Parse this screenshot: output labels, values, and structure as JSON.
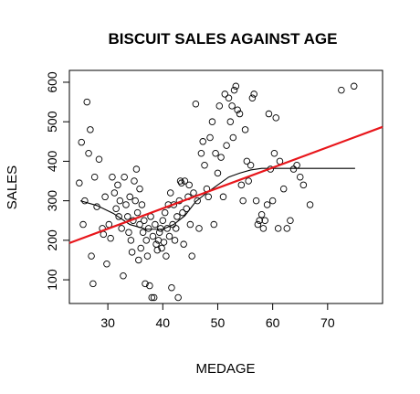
{
  "chart_data": {
    "type": "scatter",
    "title": "BISCUIT SALES AGAINST AGE",
    "xlabel": "MEDAGE",
    "ylabel": "SALES",
    "xlim": [
      23,
      80
    ],
    "ylim": [
      40,
      630
    ],
    "xticks": [
      30,
      40,
      50,
      60,
      70
    ],
    "yticks": [
      100,
      200,
      300,
      400,
      500,
      600
    ],
    "grid": false,
    "points": [
      [
        24.8,
        345
      ],
      [
        25.2,
        448
      ],
      [
        25.5,
        240
      ],
      [
        25.8,
        300
      ],
      [
        26.2,
        550
      ],
      [
        26.5,
        420
      ],
      [
        26.8,
        480
      ],
      [
        27.0,
        160
      ],
      [
        27.3,
        90
      ],
      [
        27.6,
        360
      ],
      [
        28.0,
        285
      ],
      [
        28.4,
        405
      ],
      [
        29.0,
        230
      ],
      [
        29.2,
        215
      ],
      [
        29.5,
        310
      ],
      [
        29.8,
        140
      ],
      [
        30.2,
        240
      ],
      [
        30.5,
        205
      ],
      [
        30.8,
        360
      ],
      [
        31.2,
        320
      ],
      [
        31.5,
        280
      ],
      [
        31.8,
        340
      ],
      [
        32.0,
        260
      ],
      [
        32.2,
        300
      ],
      [
        32.5,
        230
      ],
      [
        32.8,
        110
      ],
      [
        33.0,
        360
      ],
      [
        33.3,
        290
      ],
      [
        33.6,
        260
      ],
      [
        33.8,
        220
      ],
      [
        34.0,
        310
      ],
      [
        34.2,
        200
      ],
      [
        34.4,
        170
      ],
      [
        34.6,
        250
      ],
      [
        34.8,
        350
      ],
      [
        35.0,
        300
      ],
      [
        35.2,
        380
      ],
      [
        35.4,
        270
      ],
      [
        35.6,
        150
      ],
      [
        35.8,
        240
      ],
      [
        36.0,
        180
      ],
      [
        36.2,
        290
      ],
      [
        36.4,
        220
      ],
      [
        36.6,
        250
      ],
      [
        36.8,
        90
      ],
      [
        37.0,
        200
      ],
      [
        37.2,
        160
      ],
      [
        37.4,
        230
      ],
      [
        37.6,
        85
      ],
      [
        37.8,
        260
      ],
      [
        38.0,
        55
      ],
      [
        38.2,
        210
      ],
      [
        38.4,
        55
      ],
      [
        38.6,
        240
      ],
      [
        38.8,
        190
      ],
      [
        39.0,
        175
      ],
      [
        39.2,
        200
      ],
      [
        39.4,
        220
      ],
      [
        39.6,
        230
      ],
      [
        39.8,
        180
      ],
      [
        40.0,
        250
      ],
      [
        40.2,
        195
      ],
      [
        40.4,
        270
      ],
      [
        40.6,
        160
      ],
      [
        40.8,
        230
      ],
      [
        41.0,
        290
      ],
      [
        41.2,
        210
      ],
      [
        41.4,
        320
      ],
      [
        41.6,
        80
      ],
      [
        41.8,
        240
      ],
      [
        42.0,
        290
      ],
      [
        42.2,
        200
      ],
      [
        42.4,
        230
      ],
      [
        42.6,
        260
      ],
      [
        42.8,
        55
      ],
      [
        43.0,
        300
      ],
      [
        43.2,
        350
      ],
      [
        43.4,
        345
      ],
      [
        43.6,
        270
      ],
      [
        43.8,
        190
      ],
      [
        44.0,
        350
      ],
      [
        44.3,
        280
      ],
      [
        44.6,
        310
      ],
      [
        45.0,
        240
      ],
      [
        45.3,
        160
      ],
      [
        45.6,
        320
      ],
      [
        46.0,
        545
      ],
      [
        46.3,
        300
      ],
      [
        46.6,
        230
      ],
      [
        47.0,
        420
      ],
      [
        47.3,
        450
      ],
      [
        47.6,
        390
      ],
      [
        48.0,
        330
      ],
      [
        48.3,
        310
      ],
      [
        48.6,
        460
      ],
      [
        49.0,
        500
      ],
      [
        49.3,
        240
      ],
      [
        49.6,
        420
      ],
      [
        50.0,
        370
      ],
      [
        50.3,
        540
      ],
      [
        50.6,
        410
      ],
      [
        51.0,
        310
      ],
      [
        51.3,
        570
      ],
      [
        51.6,
        440
      ],
      [
        52.0,
        560
      ],
      [
        52.3,
        500
      ],
      [
        52.6,
        540
      ],
      [
        53.0,
        580
      ],
      [
        53.3,
        590
      ],
      [
        53.6,
        530
      ],
      [
        54.0,
        520
      ],
      [
        54.3,
        340
      ],
      [
        54.6,
        300
      ],
      [
        55.0,
        480
      ],
      [
        55.3,
        400
      ],
      [
        55.6,
        350
      ],
      [
        56.0,
        390
      ],
      [
        56.3,
        560
      ],
      [
        56.6,
        570
      ],
      [
        57.0,
        300
      ],
      [
        57.3,
        240
      ],
      [
        57.6,
        250
      ],
      [
        58.0,
        265
      ],
      [
        58.3,
        230
      ],
      [
        58.6,
        250
      ],
      [
        59.0,
        290
      ],
      [
        59.3,
        520
      ],
      [
        59.6,
        380
      ],
      [
        60.0,
        300
      ],
      [
        60.3,
        420
      ],
      [
        60.6,
        510
      ],
      [
        61.0,
        230
      ],
      [
        61.3,
        400
      ],
      [
        62.0,
        330
      ],
      [
        62.6,
        230
      ],
      [
        63.2,
        250
      ],
      [
        63.8,
        380
      ],
      [
        64.4,
        390
      ],
      [
        65.0,
        360
      ],
      [
        65.6,
        340
      ],
      [
        66.8,
        290
      ],
      [
        72.5,
        580
      ],
      [
        74.8,
        590
      ],
      [
        35.8,
        330
      ],
      [
        44.8,
        340
      ],
      [
        52.8,
        460
      ]
    ],
    "regression": {
      "x": [
        23,
        80
      ],
      "y": [
        193,
        487
      ],
      "color": "#e8161b"
    },
    "smooth": {
      "x": [
        25,
        28,
        31,
        34,
        37,
        40,
        42,
        44,
        46,
        48,
        50,
        52,
        54,
        56,
        58,
        60,
        65,
        75
      ],
      "y": [
        300,
        288,
        268,
        240,
        228,
        228,
        240,
        262,
        298,
        320,
        340,
        360,
        370,
        378,
        382,
        382,
        382,
        382
      ],
      "color": "#000000"
    }
  }
}
